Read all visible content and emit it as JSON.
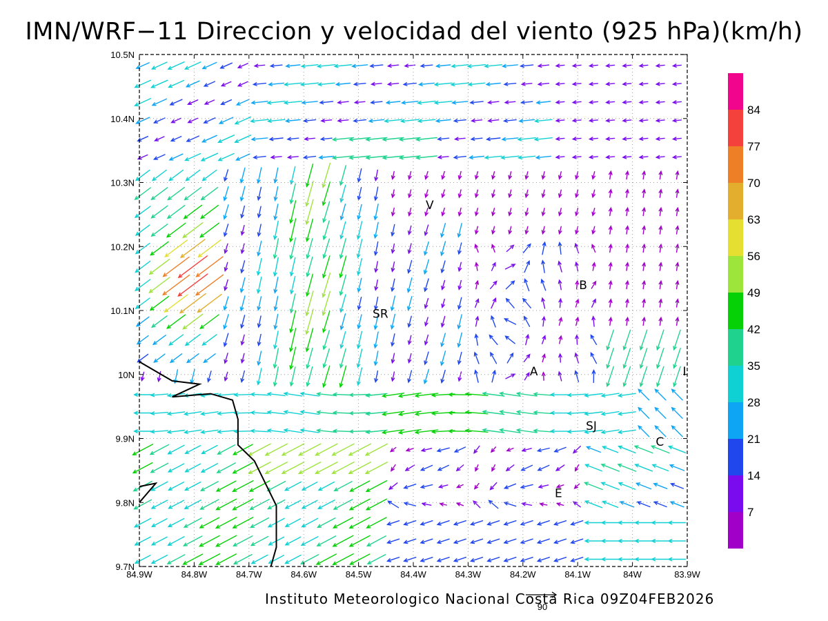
{
  "title": "IMN/WRF−11 Direccion y velocidad del viento (925 hPa)(km/h)",
  "credit": "Instituto Meteorologico Nacional Costa Rica 09Z04FEB2026",
  "reference_vector": {
    "label": "90",
    "speed": 90
  },
  "map": {
    "lon_range": [
      -84.9,
      -83.9
    ],
    "lat_range": [
      9.7,
      10.5
    ],
    "x_ticks": [
      "84.9W",
      "84.8W",
      "84.7W",
      "84.6W",
      "84.5W",
      "84.4W",
      "84.3W",
      "84.2W",
      "84.1W",
      "84W",
      "83.9W"
    ],
    "y_ticks": [
      "9.7N",
      "9.8N",
      "9.9N",
      "10N",
      "10.1N",
      "10.2N",
      "10.3N",
      "10.4N",
      "10.5N"
    ],
    "grid": "dotted",
    "coastline": [
      [
        -84.9,
        10.02
      ],
      [
        -84.84,
        9.99
      ],
      [
        -84.79,
        9.985
      ],
      [
        -84.84,
        9.965
      ],
      [
        -84.77,
        9.97
      ],
      [
        -84.73,
        9.96
      ],
      [
        -84.72,
        9.93
      ],
      [
        -84.72,
        9.89
      ],
      [
        -84.69,
        9.865
      ],
      [
        -84.67,
        9.83
      ],
      [
        -84.65,
        9.795
      ],
      [
        -84.65,
        9.73
      ],
      [
        -84.66,
        9.7
      ]
    ],
    "coastline_south": [
      [
        -84.9,
        9.825
      ],
      [
        -84.87,
        9.83
      ],
      [
        -84.9,
        9.8
      ]
    ],
    "places": [
      {
        "code": "V",
        "lon": -84.37,
        "lat": 10.265
      },
      {
        "code": "B",
        "lon": -84.09,
        "lat": 10.14
      },
      {
        "code": "SR",
        "lon": -84.46,
        "lat": 10.095
      },
      {
        "code": "A",
        "lon": -84.18,
        "lat": 10.005
      },
      {
        "code": "SJ",
        "lon": -84.075,
        "lat": 9.92
      },
      {
        "code": "C",
        "lon": -83.95,
        "lat": 9.895
      },
      {
        "code": "E",
        "lon": -84.135,
        "lat": 9.815
      },
      {
        "code": "I",
        "lon": -83.905,
        "lat": 10.005
      }
    ]
  },
  "legend": {
    "labels": [
      "84",
      "77",
      "70",
      "63",
      "56",
      "49",
      "42",
      "35",
      "28",
      "21",
      "14",
      "7"
    ],
    "colors": [
      "#f0058c",
      "#f5413c",
      "#ef7f26",
      "#e3ad2d",
      "#e4df30",
      "#9de43b",
      "#06d106",
      "#1fd38f",
      "#0fd0d3",
      "#0ea5f4",
      "#2046ee",
      "#7a0bee",
      "#a000c8"
    ]
  }
}
